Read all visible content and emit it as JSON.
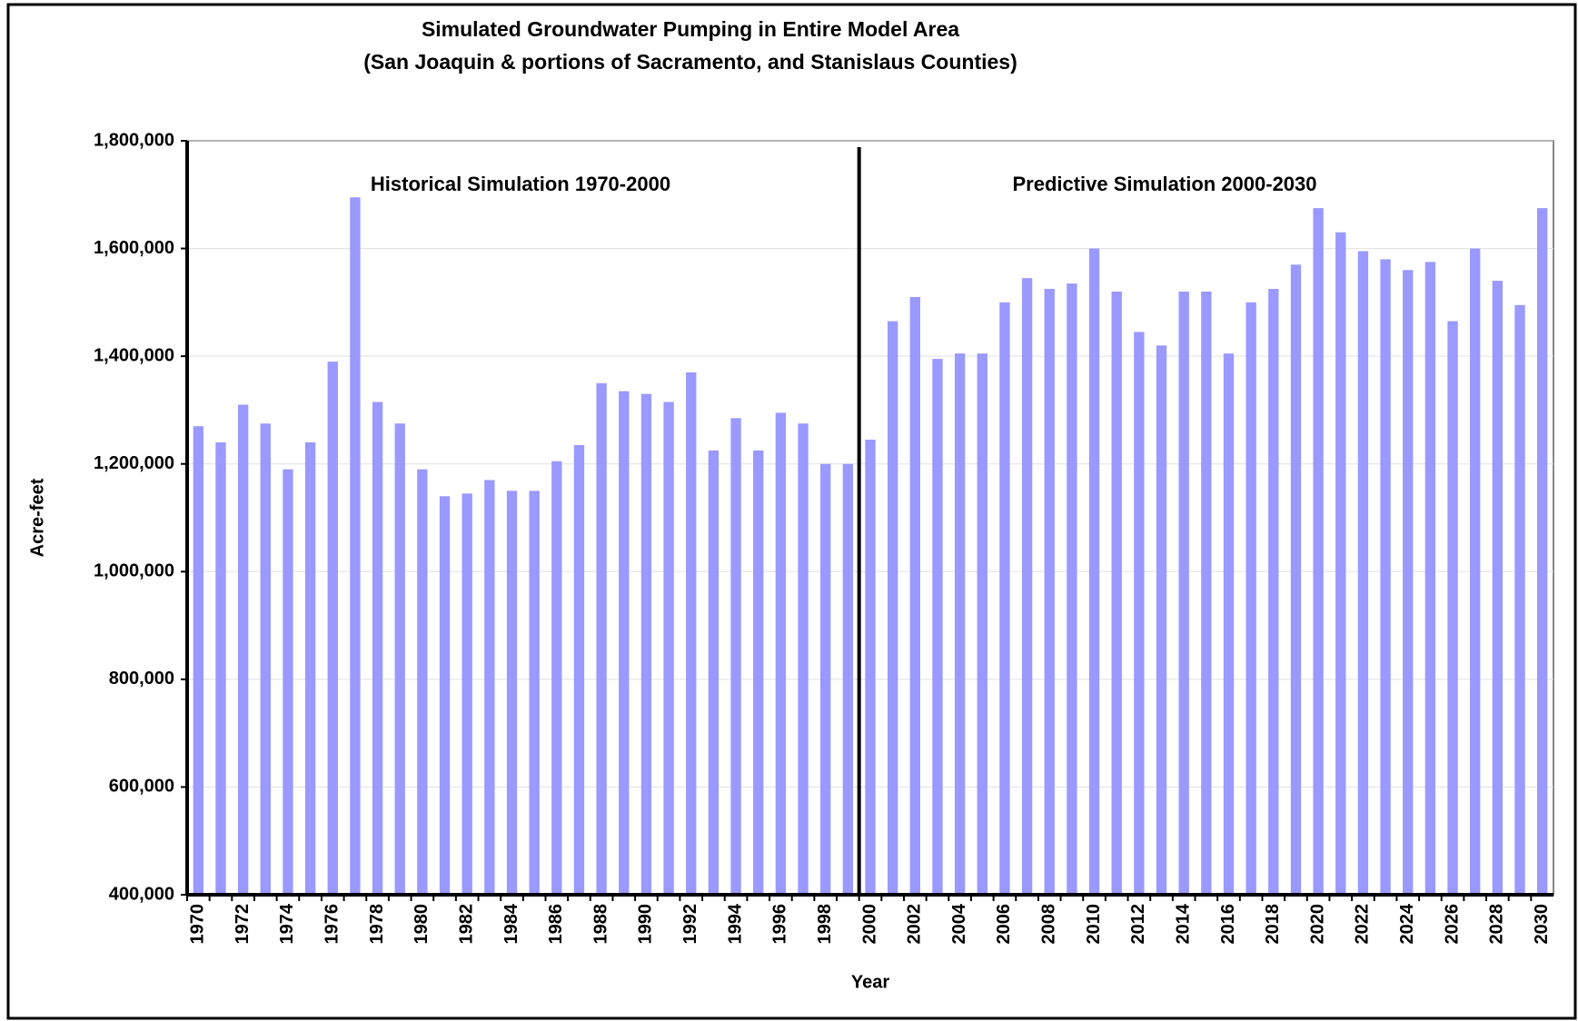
{
  "chart_data": {
    "type": "bar",
    "title": "Simulated Groundwater Pumping in Entire Model Area",
    "subtitle": "(San Joaquin & portions of Sacramento, and Stanislaus Counties)",
    "x_label": "Year",
    "y_label": "Acre-feet",
    "annotations": [
      "Historical Simulation 1970-2000",
      "Predictive Simulation 2000-2030"
    ],
    "categories": [
      "1970",
      null,
      "1972",
      null,
      "1974",
      null,
      "1976",
      null,
      "1978",
      null,
      "1980",
      null,
      "1982",
      null,
      "1984",
      null,
      "1986",
      null,
      "1988",
      null,
      "1990",
      null,
      "1992",
      null,
      "1994",
      null,
      "1996",
      null,
      "1998",
      null,
      "2000",
      null,
      "2002",
      null,
      "2004",
      null,
      "2006",
      null,
      "2008",
      null,
      "2010",
      null,
      "2012",
      null,
      "2014",
      null,
      "2016",
      null,
      "2018",
      null,
      "2020",
      null,
      "2022",
      null,
      "2024",
      null,
      "2026",
      null,
      "2028",
      null,
      "2030"
    ],
    "values": [
      1270000,
      1240000,
      1310000,
      1275000,
      1190000,
      1240000,
      1390000,
      1695000,
      1315000,
      1275000,
      1190000,
      1140000,
      1145000,
      1170000,
      1150000,
      1150000,
      1205000,
      1235000,
      1350000,
      1335000,
      1330000,
      1315000,
      1370000,
      1225000,
      1285000,
      1225000,
      1295000,
      1275000,
      1200000,
      1200000,
      1245000,
      1465000,
      1510000,
      1395000,
      1405000,
      1405000,
      1500000,
      1545000,
      1525000,
      1535000,
      1600000,
      1520000,
      1445000,
      1420000,
      1520000,
      1520000,
      1405000,
      1500000,
      1525000,
      1570000,
      1675000,
      1630000,
      1595000,
      1580000,
      1560000,
      1575000,
      1465000,
      1600000,
      1540000,
      1495000,
      1675000
    ],
    "color": "#9999ff",
    "ylim": [
      400000,
      1800000
    ],
    "yticks": [
      {
        "value": 400000,
        "label": "400,000"
      },
      {
        "value": 600000,
        "label": "600,000"
      },
      {
        "value": 800000,
        "label": "800,000"
      },
      {
        "value": 1000000,
        "label": "1,000,000"
      },
      {
        "value": 1200000,
        "label": "1,200,000"
      },
      {
        "value": 1400000,
        "label": "1,400,000"
      },
      {
        "value": 1600000,
        "label": "1,600,000"
      },
      {
        "value": 1800000,
        "label": "1,800,000"
      }
    ],
    "grid": true
  }
}
